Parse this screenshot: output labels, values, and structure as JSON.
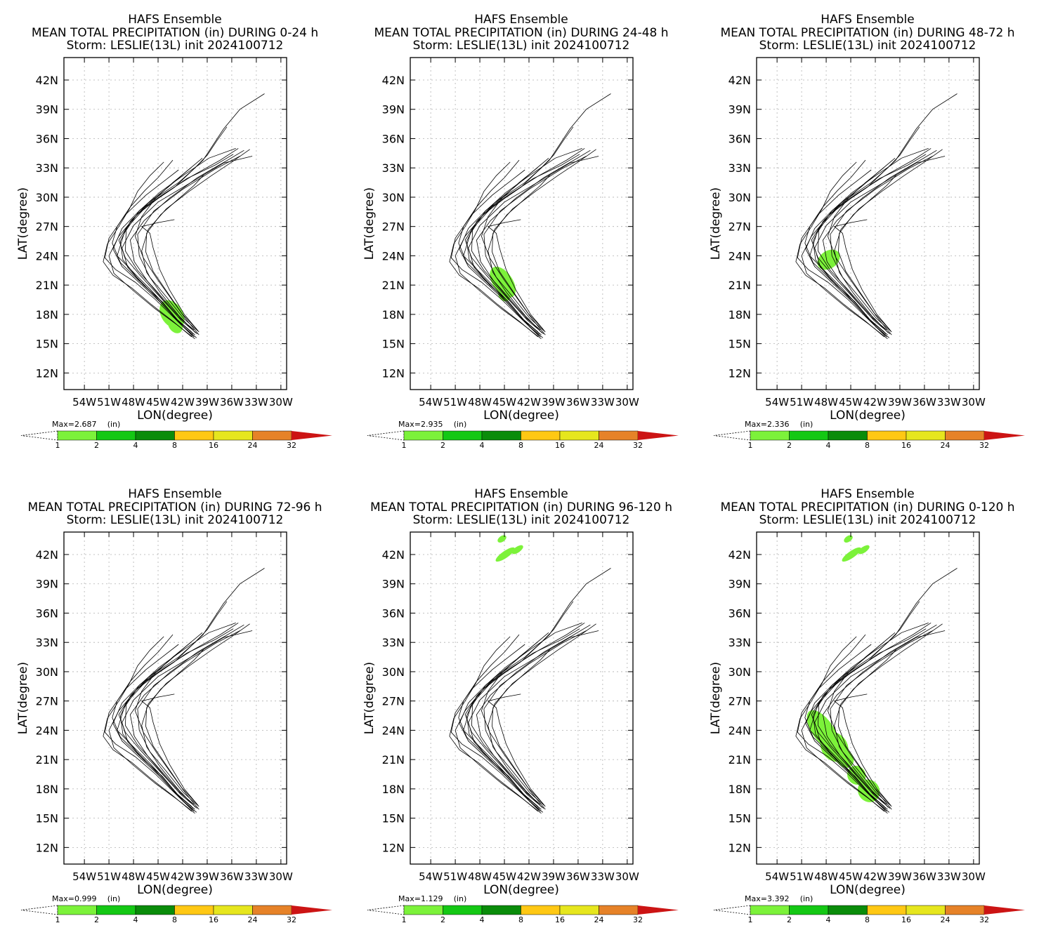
{
  "panels": [
    {
      "title": "HAFS Ensemble",
      "subtitle": "MEAN TOTAL PRECIPITATION (in) DURING  0-24 h",
      "storm": "Storm: LESLIE(13L) init 2024100712",
      "max_label": "Max=2.687",
      "period": "0-24"
    },
    {
      "title": "HAFS Ensemble",
      "subtitle": "MEAN TOTAL PRECIPITATION (in) DURING 24-48 h",
      "storm": "Storm: LESLIE(13L) init 2024100712",
      "max_label": "Max=2.935",
      "period": "24-48"
    },
    {
      "title": "HAFS Ensemble",
      "subtitle": "MEAN TOTAL PRECIPITATION (in) DURING 48-72 h",
      "storm": "Storm: LESLIE(13L) init 2024100712",
      "max_label": "Max=2.336",
      "period": "48-72"
    },
    {
      "title": "HAFS Ensemble",
      "subtitle": "MEAN TOTAL PRECIPITATION (in) DURING 72-96 h",
      "storm": "Storm: LESLIE(13L) init 2024100712",
      "max_label": "Max=0.999",
      "period": "72-96"
    },
    {
      "title": "HAFS Ensemble",
      "subtitle": "MEAN TOTAL PRECIPITATION (in) DURING 96-120 h",
      "storm": "Storm: LESLIE(13L) init 2024100712",
      "max_label": "Max=1.129",
      "period": "96-120"
    },
    {
      "title": "HAFS Ensemble",
      "subtitle": "MEAN TOTAL PRECIPITATION (in) DURING 0-120 h",
      "storm": "Storm: LESLIE(13L) init 2024100712",
      "max_label": "Max=3.392",
      "period": "0-120"
    }
  ],
  "axes": {
    "xlabel": "LON(degree)",
    "ylabel": "LAT(degree)",
    "lon_ticks": [
      "54W",
      "51W",
      "48W",
      "45W",
      "42W",
      "39W",
      "36W",
      "33W",
      "30W"
    ],
    "lon_values": [
      -54,
      -51,
      -48,
      -45,
      -42,
      -39,
      -36,
      -33,
      -30
    ],
    "lat_ticks": [
      "42N",
      "39N",
      "36N",
      "33N",
      "30N",
      "27N",
      "24N",
      "21N",
      "18N",
      "15N",
      "12N"
    ],
    "lat_values": [
      42,
      39,
      36,
      33,
      30,
      27,
      24,
      21,
      18,
      15,
      12
    ],
    "lon_range": [
      -56.5,
      -29.3
    ],
    "lat_range": [
      10.3,
      44.3
    ],
    "grid": true
  },
  "colorbar": {
    "unit": "(in)",
    "labels": [
      "1",
      "2",
      "4",
      "8",
      "16",
      "24",
      "32"
    ],
    "colors": [
      "#7cf23a",
      "#14c814",
      "#0a8c0a",
      "#ffc814",
      "#e6e61e",
      "#e68228",
      "#cc1414"
    ]
  },
  "tracks": [
    [
      [
        -40.3,
        15.6
      ],
      [
        -42.0,
        16.8
      ],
      [
        -44.2,
        19.0
      ],
      [
        -46.0,
        20.6
      ],
      [
        -48.0,
        22.3
      ],
      [
        -50.0,
        24.0
      ],
      [
        -49.0,
        26.7
      ],
      [
        -46.5,
        29.0
      ],
      [
        -43.0,
        31.0
      ],
      [
        -39.5,
        33.8
      ],
      [
        -37.0,
        37.0
      ],
      [
        -35.0,
        39.0
      ],
      [
        -32.0,
        40.6
      ]
    ],
    [
      [
        -40.5,
        15.9
      ],
      [
        -42.4,
        17.2
      ],
      [
        -44.5,
        19.3
      ],
      [
        -46.8,
        21.0
      ],
      [
        -48.7,
        22.8
      ],
      [
        -49.4,
        24.8
      ],
      [
        -48.0,
        27.1
      ],
      [
        -45.0,
        29.5
      ],
      [
        -41.0,
        31.5
      ],
      [
        -37.0,
        33.5
      ],
      [
        -33.5,
        34.2
      ]
    ],
    [
      [
        -40.2,
        16.0
      ],
      [
        -42.2,
        17.4
      ],
      [
        -44.4,
        19.5
      ],
      [
        -46.3,
        21.4
      ],
      [
        -47.9,
        23.4
      ],
      [
        -48.4,
        25.6
      ],
      [
        -46.7,
        27.6
      ],
      [
        -43.6,
        29.9
      ],
      [
        -40.2,
        32.0
      ],
      [
        -36.5,
        33.8
      ],
      [
        -34.5,
        34.8
      ]
    ],
    [
      [
        -40.0,
        16.2
      ],
      [
        -41.9,
        17.6
      ],
      [
        -44.0,
        19.8
      ],
      [
        -46.0,
        21.8
      ],
      [
        -47.3,
        24.0
      ],
      [
        -47.5,
        26.2
      ],
      [
        -45.5,
        28.6
      ],
      [
        -42.0,
        30.8
      ],
      [
        -38.0,
        32.9
      ],
      [
        -35.0,
        34.2
      ]
    ],
    [
      [
        -40.6,
        16.4
      ],
      [
        -42.6,
        17.8
      ],
      [
        -45.0,
        20.0
      ],
      [
        -47.2,
        22.0
      ],
      [
        -49.0,
        23.8
      ],
      [
        -49.8,
        25.6
      ],
      [
        -48.2,
        27.7
      ],
      [
        -45.5,
        29.8
      ],
      [
        -42.5,
        31.5
      ],
      [
        -40.5,
        33.0
      ],
      [
        -39.0,
        34.3
      ],
      [
        -37.8,
        35.8
      ],
      [
        -36.6,
        37.2
      ]
    ],
    [
      [
        -40.8,
        15.8
      ],
      [
        -43.0,
        17.6
      ],
      [
        -45.3,
        19.5
      ],
      [
        -47.8,
        21.3
      ],
      [
        -50.2,
        22.6
      ],
      [
        -51.5,
        23.8
      ],
      [
        -51.0,
        25.8
      ],
      [
        -49.0,
        28.2
      ],
      [
        -46.5,
        30.2
      ],
      [
        -44.5,
        31.5
      ],
      [
        -42.5,
        32.8
      ]
    ],
    [
      [
        -40.4,
        16.1
      ],
      [
        -42.5,
        17.9
      ],
      [
        -44.7,
        20.2
      ],
      [
        -46.4,
        22.3
      ],
      [
        -47.0,
        24.5
      ],
      [
        -46.2,
        26.7
      ],
      [
        -44.0,
        28.8
      ],
      [
        -41.2,
        30.6
      ],
      [
        -38.5,
        32.2
      ],
      [
        -36.0,
        33.6
      ],
      [
        -33.8,
        34.9
      ]
    ],
    [
      [
        -40.9,
        15.7
      ],
      [
        -43.2,
        17.3
      ],
      [
        -45.8,
        19.0
      ],
      [
        -48.2,
        20.7
      ],
      [
        -50.5,
        22.0
      ],
      [
        -51.7,
        23.4
      ],
      [
        -51.2,
        25.2
      ],
      [
        -49.8,
        27.0
      ],
      [
        -48.5,
        28.8
      ],
      [
        -47.5,
        30.6
      ],
      [
        -46.0,
        32.2
      ],
      [
        -44.3,
        33.6
      ]
    ],
    [
      [
        -40.1,
        16.3
      ],
      [
        -41.8,
        18.0
      ],
      [
        -43.6,
        20.5
      ],
      [
        -44.8,
        22.6
      ],
      [
        -45.6,
        24.8
      ],
      [
        -46.0,
        26.3
      ],
      [
        -47.0,
        27.0
      ],
      [
        -45.0,
        27.4
      ],
      [
        -43.0,
        27.7
      ]
    ],
    [
      [
        -41.0,
        16.6
      ],
      [
        -42.9,
        18.2
      ],
      [
        -45.2,
        20.4
      ],
      [
        -47.5,
        22.5
      ],
      [
        -49.0,
        24.5
      ],
      [
        -48.9,
        26.6
      ],
      [
        -47.3,
        28.6
      ],
      [
        -44.8,
        30.5
      ],
      [
        -41.8,
        32.3
      ],
      [
        -38.8,
        34.0
      ],
      [
        -35.5,
        35.0
      ]
    ],
    [
      [
        -40.7,
        16.0
      ],
      [
        -42.7,
        17.5
      ],
      [
        -44.9,
        19.6
      ],
      [
        -47.4,
        21.5
      ],
      [
        -49.6,
        23.3
      ],
      [
        -50.6,
        25.3
      ],
      [
        -50.0,
        27.0
      ],
      [
        -48.4,
        29.0
      ],
      [
        -46.6,
        30.7
      ],
      [
        -45.0,
        32.0
      ],
      [
        -44.0,
        33.0
      ],
      [
        -43.2,
        33.8
      ]
    ],
    [
      [
        -40.3,
        16.5
      ],
      [
        -42.1,
        18.1
      ],
      [
        -43.9,
        20.3
      ],
      [
        -45.6,
        22.4
      ],
      [
        -46.5,
        24.4
      ],
      [
        -46.4,
        26.3
      ],
      [
        -44.7,
        28.2
      ],
      [
        -42.4,
        29.9
      ],
      [
        -40.6,
        31.2
      ],
      [
        -39.4,
        32.3
      ]
    ],
    [
      [
        -40.5,
        15.5
      ],
      [
        -42.8,
        17.0
      ],
      [
        -45.4,
        18.6
      ],
      [
        -48.0,
        20.4
      ],
      [
        -50.4,
        22.2
      ],
      [
        -51.0,
        24.0
      ],
      [
        -49.8,
        26.0
      ],
      [
        -47.6,
        28.2
      ],
      [
        -44.8,
        30.0
      ],
      [
        -41.5,
        31.9
      ],
      [
        -38.0,
        33.3
      ],
      [
        -35.8,
        34.4
      ]
    ],
    [
      [
        -40.0,
        15.9
      ],
      [
        -41.6,
        17.5
      ],
      [
        -43.4,
        19.6
      ],
      [
        -45.1,
        21.6
      ],
      [
        -46.8,
        23.8
      ],
      [
        -47.8,
        26.0
      ],
      [
        -47.0,
        28.0
      ],
      [
        -45.4,
        29.8
      ],
      [
        -43.2,
        31.5
      ],
      [
        -41.0,
        33.0
      ]
    ],
    [
      [
        -40.9,
        16.2
      ],
      [
        -43.0,
        17.7
      ],
      [
        -45.3,
        19.8
      ],
      [
        -47.6,
        21.8
      ],
      [
        -49.3,
        23.6
      ],
      [
        -49.6,
        25.5
      ],
      [
        -48.4,
        27.5
      ],
      [
        -46.2,
        29.4
      ],
      [
        -43.8,
        31.0
      ],
      [
        -41.6,
        32.6
      ],
      [
        -39.6,
        34.0
      ]
    ],
    [
      [
        -40.6,
        15.7
      ],
      [
        -42.6,
        17.3
      ],
      [
        -44.8,
        19.3
      ],
      [
        -47.1,
        21.1
      ],
      [
        -49.4,
        22.9
      ],
      [
        -50.5,
        24.7
      ],
      [
        -49.4,
        26.8
      ],
      [
        -47.2,
        28.7
      ],
      [
        -44.2,
        30.4
      ],
      [
        -40.8,
        32.2
      ],
      [
        -37.4,
        33.8
      ],
      [
        -35.2,
        35.0
      ]
    ]
  ],
  "precip_periods": {
    "0-24": [
      [
        -43.3,
        18.0,
        1.3,
        1.6
      ],
      [
        -42.9,
        16.9,
        0.8,
        0.9
      ]
    ],
    "24-48": [
      [
        -45.2,
        21.3,
        1.2,
        1.8
      ],
      [
        -45.0,
        20.0,
        0.7,
        0.7
      ]
    ],
    "48-72": [
      [
        -47.7,
        23.6,
        1.5,
        0.9
      ]
    ],
    "72-96": [],
    "96-120": [
      [
        -45.3,
        43.6,
        0.6,
        0.3
      ],
      [
        -44.9,
        42.0,
        1.4,
        0.35
      ],
      [
        -43.4,
        42.5,
        0.8,
        0.3
      ]
    ],
    "0-120": [
      [
        -48.4,
        24.0,
        1.3,
        2.4
      ],
      [
        -47.0,
        22.3,
        1.6,
        1.6
      ],
      [
        -45.7,
        21.1,
        1.0,
        1.0
      ],
      [
        -44.3,
        19.4,
        1.1,
        1.0
      ],
      [
        -42.8,
        17.8,
        1.3,
        1.2
      ],
      [
        -45.3,
        43.6,
        0.6,
        0.3
      ],
      [
        -44.9,
        42.0,
        1.4,
        0.35
      ],
      [
        -43.4,
        42.5,
        0.8,
        0.3
      ]
    ]
  }
}
